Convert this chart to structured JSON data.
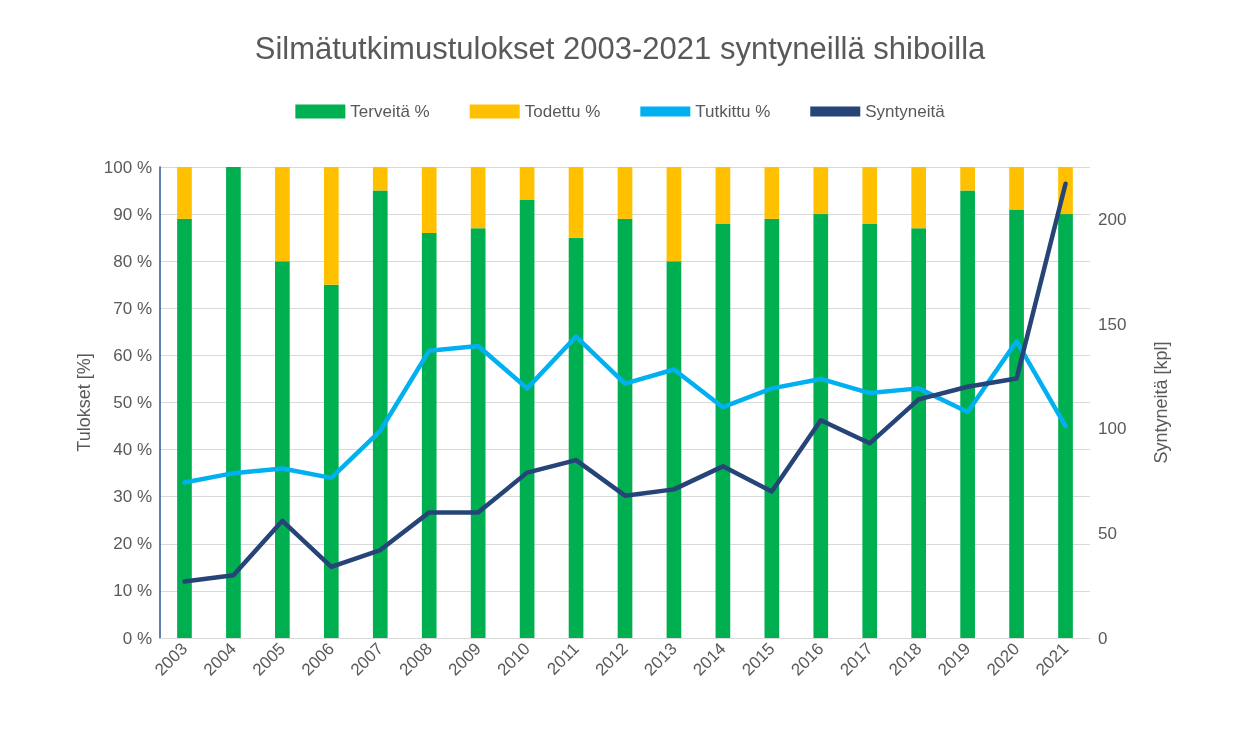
{
  "chart_data": {
    "type": "bar",
    "title": "Silmätutkimustulokset 2003-2021 syntyneillä shiboilla",
    "ylabel": "Tulokset [%]",
    "y2label": "Syntyneitä [kpl]",
    "categories": [
      "2003",
      "2004",
      "2005",
      "2006",
      "2007",
      "2008",
      "2009",
      "2010",
      "2011",
      "2012",
      "2013",
      "2014",
      "2015",
      "2016",
      "2017",
      "2018",
      "2019",
      "2020",
      "2021"
    ],
    "stacked": true,
    "grid": "y",
    "legend": "top",
    "ylim": [
      0,
      100
    ],
    "yticks": [
      {
        "value": 0,
        "label": "0 %"
      },
      {
        "value": 10,
        "label": "10 %"
      },
      {
        "value": 20,
        "label": "20 %"
      },
      {
        "value": 30,
        "label": "30 %"
      },
      {
        "value": 40,
        "label": "40 %"
      },
      {
        "value": 50,
        "label": "50 %"
      },
      {
        "value": 60,
        "label": "60 %"
      },
      {
        "value": 70,
        "label": "70 %"
      },
      {
        "value": 80,
        "label": "80 %"
      },
      {
        "value": 90,
        "label": "90 %"
      },
      {
        "value": 100,
        "label": "100 %"
      }
    ],
    "y2lim": [
      0,
      225
    ],
    "y2ticks": [
      0,
      50,
      100,
      150,
      200
    ],
    "series": [
      {
        "name": "Terveitä %",
        "color": "#00b050",
        "values": [
          89,
          100,
          80,
          75,
          95,
          86,
          87,
          93,
          85,
          89,
          80,
          88,
          89,
          90,
          88,
          87,
          95,
          91,
          90
        ]
      },
      {
        "name": "Todettu %",
        "color": "#ffc000",
        "values": [
          11,
          0,
          20,
          25,
          5,
          14,
          13,
          7,
          15,
          11,
          20,
          12,
          11,
          10,
          12,
          13,
          5,
          9,
          10
        ]
      },
      {
        "name": "Tutkittu %",
        "type": "line",
        "color": "#00b0f0",
        "values": [
          33,
          35,
          36,
          34,
          44,
          61,
          62,
          53,
          64,
          54,
          57,
          49,
          53,
          55,
          52,
          53,
          48,
          63,
          45
        ]
      },
      {
        "name": "Syntyneitä",
        "type": "line",
        "axis": "y2",
        "color": "#264478",
        "values": [
          27,
          30,
          56,
          34,
          42,
          60,
          60,
          79,
          85,
          68,
          71,
          82,
          70,
          104,
          93,
          114,
          120,
          124,
          217
        ]
      }
    ]
  }
}
